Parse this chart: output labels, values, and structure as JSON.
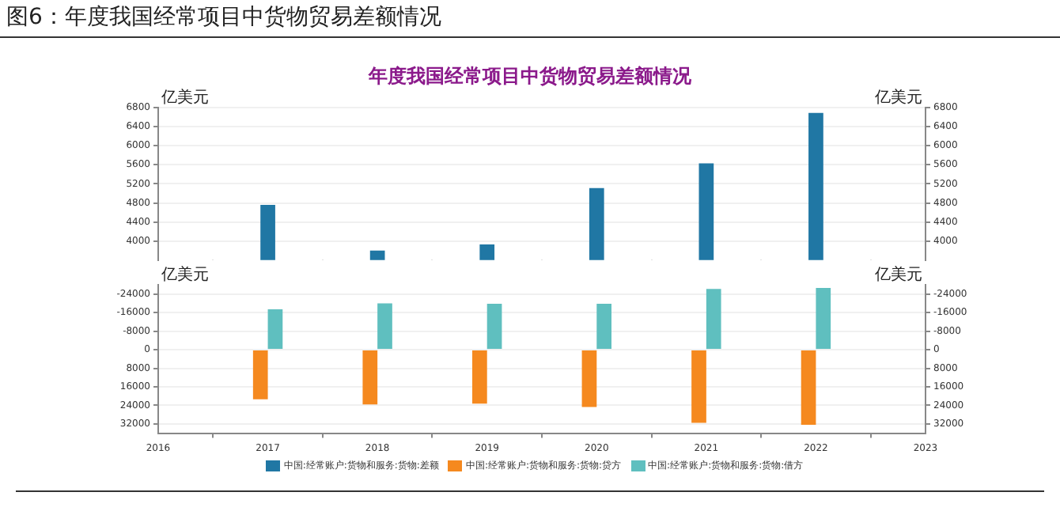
{
  "chart_data": [
    {
      "type": "bar",
      "title": "年度我国经常项目中货物贸易差额情况",
      "annotations": [
        "图6：年度我国经常项目中货物贸易差额情况"
      ],
      "x": [
        2017,
        2018,
        2019,
        2020,
        2021,
        2022
      ],
      "xlim": [
        2016,
        2023
      ],
      "xticks": [
        2016,
        2017,
        2018,
        2019,
        2020,
        2021,
        2022,
        2023
      ],
      "ylim": [
        3600,
        6800
      ],
      "yticks": [
        4000,
        4400,
        4800,
        5200,
        5600,
        6000,
        6400,
        6800
      ],
      "y2lim": [
        3600,
        6800
      ],
      "y2ticks": [
        4000,
        4400,
        4800,
        5200,
        5600,
        6000,
        6400,
        6800
      ],
      "ylabel": "亿美元",
      "y2label": "亿美元",
      "grid": "y",
      "legend": "bottom",
      "tick_labels": "y",
      "series": [
        {
          "name": "中国:经常账户:货物和服务:货物:差额",
          "color": "#2077a4",
          "values": [
            4760,
            3800,
            3930,
            5110,
            5630,
            6690
          ]
        }
      ]
    },
    {
      "type": "bar",
      "x": [
        2017,
        2018,
        2019,
        2020,
        2021,
        2022
      ],
      "xlim": [
        2016,
        2023
      ],
      "xticks": [
        2016,
        2017,
        2018,
        2019,
        2020,
        2021,
        2022,
        2023
      ],
      "ylim": [
        36000,
        -28000
      ],
      "yticks": [
        -24000,
        -16000,
        -8000,
        0,
        8000,
        16000,
        24000,
        32000
      ],
      "y2lim": [
        36000,
        -28000
      ],
      "y2ticks": [
        -24000,
        -16000,
        -8000,
        0,
        8000,
        16000,
        24000,
        32000
      ],
      "ylabel": "亿美元",
      "y2label": "亿美元",
      "grid": "y",
      "legend": "bottom",
      "series": [
        {
          "name": "中国:经常账户:货物和服务:货物:贷方",
          "color": "#f5891f",
          "values": [
            21400,
            23600,
            23300,
            24700,
            31500,
            32400
          ]
        },
        {
          "name": "中国:经常账户:货物和服务:货物:借方",
          "color": "#5fbfbf",
          "values": [
            -17400,
            -20000,
            -19800,
            -19800,
            -26200,
            -26600
          ]
        }
      ]
    }
  ]
}
